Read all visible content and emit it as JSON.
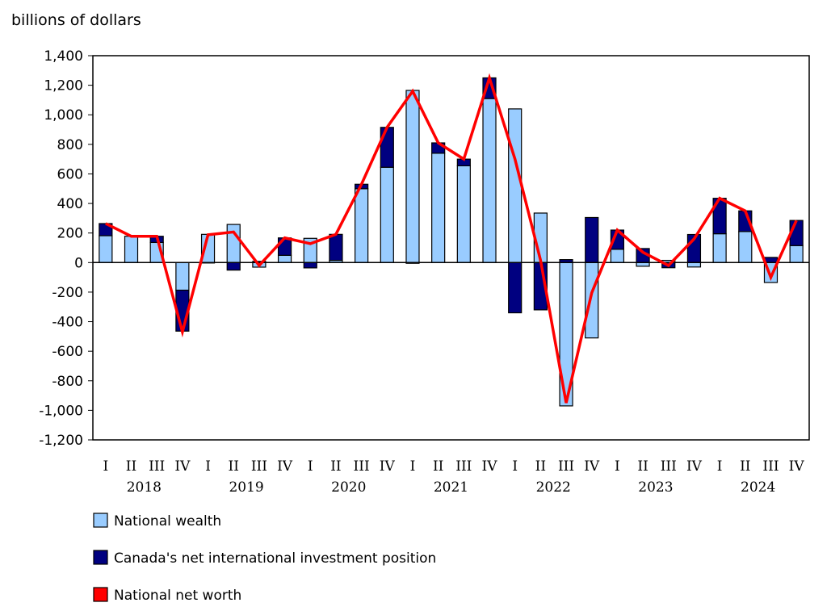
{
  "chart_data": {
    "type": "bar",
    "stacked": true,
    "ylabel": "billions of dollars",
    "ylim": [
      -1200,
      1400
    ],
    "yticks": [
      1400,
      1200,
      1000,
      800,
      600,
      400,
      200,
      0,
      -200,
      -400,
      -600,
      -800,
      -1000,
      -1200
    ],
    "ytick_labels": [
      "1,400",
      "1,200",
      "1,000",
      "800",
      "600",
      "400",
      "200",
      "0",
      "-200",
      "-400",
      "-600",
      "-800",
      "-1,000",
      "-1,200"
    ],
    "quarter_labels": [
      "I",
      "II",
      "III",
      "IV",
      "I",
      "II",
      "III",
      "IV",
      "I",
      "II",
      "III",
      "IV",
      "I",
      "II",
      "III",
      "IV",
      "I",
      "II",
      "III",
      "IV",
      "I",
      "II",
      "III",
      "IV",
      "I",
      "II",
      "III",
      "IV"
    ],
    "years": [
      "2018",
      "2019",
      "2020",
      "2021",
      "2022",
      "2023",
      "2024"
    ],
    "grid": false,
    "legend_placement": "bottom-left",
    "series": [
      {
        "name": "National wealth",
        "type": "bar",
        "color": "#99ccff",
        "values": [
          182,
          178,
          136,
          -187,
          191,
          258,
          -31,
          49,
          164,
          15,
          500,
          645,
          1165,
          740,
          655,
          1110,
          1040,
          335,
          -970,
          -510,
          90,
          -25,
          15,
          -30,
          195,
          210,
          -135,
          115
        ]
      },
      {
        "name": "Canada's net international investment position",
        "type": "bar",
        "color": "#000080",
        "values": [
          82,
          0,
          42,
          -277,
          -3,
          -51,
          8,
          118,
          -36,
          176,
          30,
          270,
          -5,
          70,
          45,
          140,
          -340,
          -320,
          20,
          305,
          130,
          95,
          -35,
          190,
          240,
          140,
          35,
          170
        ]
      },
      {
        "name": "National net worth",
        "type": "line",
        "color": "#ff0000",
        "values": [
          264,
          178,
          178,
          -470,
          188,
          207,
          -20,
          167,
          128,
          191,
          530,
          915,
          1160,
          810,
          700,
          1250,
          700,
          15,
          -950,
          -205,
          220,
          70,
          -20,
          160,
          435,
          350,
          -100,
          285
        ]
      }
    ]
  }
}
